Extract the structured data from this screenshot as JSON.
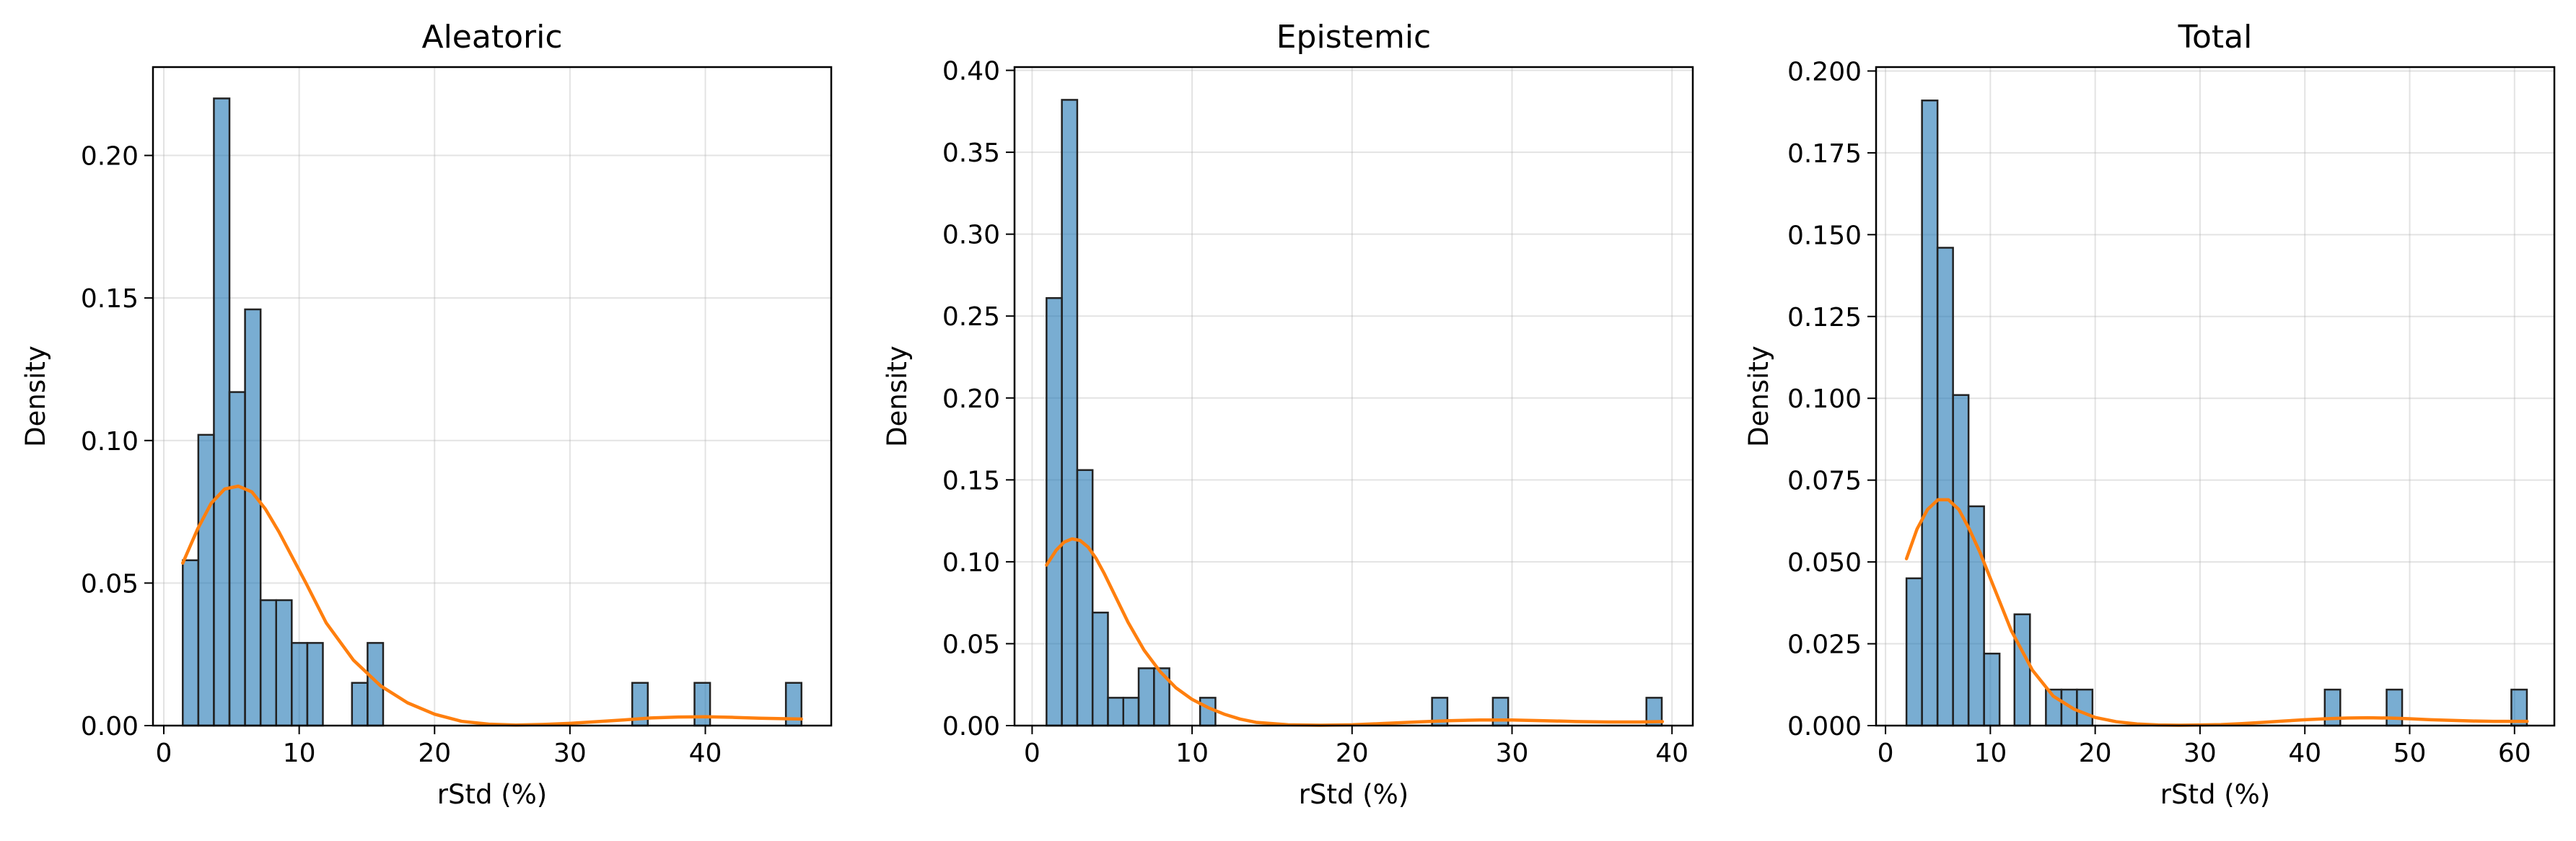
{
  "chart_data": [
    {
      "type": "bar",
      "subtype": "histogram-with-kde",
      "title": "Aleatoric",
      "xlabel": "rStd (%)",
      "ylabel": "Density",
      "xlim": [
        -0.8,
        49.3
      ],
      "ylim": [
        0,
        0.231
      ],
      "xticks": [
        0,
        10,
        20,
        30,
        40
      ],
      "yticks": [
        0.0,
        0.05,
        0.1,
        0.15,
        0.2
      ],
      "ytick_labels": [
        "0.00",
        "0.05",
        "0.10",
        "0.15",
        "0.20"
      ],
      "grid": true,
      "bin_width": 1.15,
      "bins": [
        {
          "x0": 1.4,
          "x1": 2.55,
          "density": 0.058
        },
        {
          "x0": 2.55,
          "x1": 3.7,
          "density": 0.102
        },
        {
          "x0": 3.7,
          "x1": 4.85,
          "density": 0.22
        },
        {
          "x0": 4.85,
          "x1": 6.0,
          "density": 0.117
        },
        {
          "x0": 6.0,
          "x1": 7.15,
          "density": 0.146
        },
        {
          "x0": 7.15,
          "x1": 8.3,
          "density": 0.044
        },
        {
          "x0": 8.3,
          "x1": 9.45,
          "density": 0.044
        },
        {
          "x0": 9.45,
          "x1": 10.6,
          "density": 0.029
        },
        {
          "x0": 10.6,
          "x1": 11.75,
          "density": 0.029
        },
        {
          "x0": 13.9,
          "x1": 15.05,
          "density": 0.015
        },
        {
          "x0": 15.05,
          "x1": 16.2,
          "density": 0.029
        },
        {
          "x0": 34.6,
          "x1": 35.75,
          "density": 0.015
        },
        {
          "x0": 39.2,
          "x1": 40.35,
          "density": 0.015
        },
        {
          "x0": 45.95,
          "x1": 47.1,
          "density": 0.015
        }
      ],
      "kde": {
        "x": [
          1.4,
          2.5,
          3.5,
          4.5,
          5.5,
          6.5,
          7.5,
          8.5,
          9.5,
          10.5,
          12,
          14,
          16,
          18,
          20,
          22,
          24,
          26,
          28,
          30,
          32,
          34,
          36,
          38,
          40,
          42,
          44,
          46,
          47.1
        ],
        "y": [
          0.057,
          0.069,
          0.078,
          0.083,
          0.084,
          0.082,
          0.076,
          0.068,
          0.059,
          0.05,
          0.036,
          0.023,
          0.014,
          0.008,
          0.004,
          0.0015,
          0.0005,
          0.0002,
          0.0004,
          0.0008,
          0.0014,
          0.002,
          0.0027,
          0.003,
          0.0031,
          0.0029,
          0.0026,
          0.0024,
          0.0023
        ]
      },
      "colors": {
        "bar": "#1f77b4",
        "kde": "#ff7f0e"
      }
    },
    {
      "type": "bar",
      "subtype": "histogram-with-kde",
      "title": "Epistemic",
      "xlabel": "rStd (%)",
      "ylabel": "Density",
      "xlim": [
        -1.1,
        41.3
      ],
      "ylim": [
        0,
        0.402
      ],
      "xticks": [
        0,
        10,
        20,
        30,
        40
      ],
      "yticks": [
        0.0,
        0.05,
        0.1,
        0.15,
        0.2,
        0.25,
        0.3,
        0.35,
        0.4
      ],
      "ytick_labels": [
        "0.00",
        "0.05",
        "0.10",
        "0.15",
        "0.20",
        "0.25",
        "0.30",
        "0.35",
        "0.40"
      ],
      "grid": true,
      "bin_width": 0.96,
      "bins": [
        {
          "x0": 0.9,
          "x1": 1.86,
          "density": 0.261
        },
        {
          "x0": 1.86,
          "x1": 2.82,
          "density": 0.382
        },
        {
          "x0": 2.82,
          "x1": 3.78,
          "density": 0.156
        },
        {
          "x0": 3.78,
          "x1": 4.74,
          "density": 0.069
        },
        {
          "x0": 4.74,
          "x1": 5.7,
          "density": 0.017
        },
        {
          "x0": 5.7,
          "x1": 6.66,
          "density": 0.017
        },
        {
          "x0": 6.66,
          "x1": 7.62,
          "density": 0.035
        },
        {
          "x0": 7.62,
          "x1": 8.58,
          "density": 0.035
        },
        {
          "x0": 10.5,
          "x1": 11.46,
          "density": 0.017
        },
        {
          "x0": 25.0,
          "x1": 25.96,
          "density": 0.017
        },
        {
          "x0": 28.8,
          "x1": 29.76,
          "density": 0.017
        },
        {
          "x0": 38.4,
          "x1": 39.36,
          "density": 0.017
        }
      ],
      "kde": {
        "x": [
          0.9,
          1.5,
          2.0,
          2.5,
          3.0,
          3.5,
          4.0,
          4.5,
          5,
          6,
          7,
          8,
          9,
          10,
          11,
          12,
          13,
          14,
          16,
          18,
          20,
          22,
          24,
          26,
          28,
          30,
          32,
          34,
          36,
          38,
          39.4
        ],
        "y": [
          0.098,
          0.107,
          0.112,
          0.114,
          0.113,
          0.109,
          0.102,
          0.093,
          0.083,
          0.063,
          0.046,
          0.033,
          0.023,
          0.016,
          0.011,
          0.007,
          0.004,
          0.002,
          0.0005,
          0.0002,
          0.0005,
          0.0013,
          0.0022,
          0.003,
          0.0034,
          0.0034,
          0.003,
          0.0025,
          0.0022,
          0.0022,
          0.0024
        ]
      },
      "colors": {
        "bar": "#1f77b4",
        "kde": "#ff7f0e"
      }
    },
    {
      "type": "bar",
      "subtype": "histogram-with-kde",
      "title": "Total",
      "xlabel": "rStd (%)",
      "ylabel": "Density",
      "xlim": [
        -0.9,
        63.8
      ],
      "ylim": [
        0,
        0.2012
      ],
      "xticks": [
        0,
        10,
        20,
        30,
        40,
        50,
        60
      ],
      "yticks": [
        0.0,
        0.025,
        0.05,
        0.075,
        0.1,
        0.125,
        0.15,
        0.175,
        0.2
      ],
      "ytick_labels": [
        "0.000",
        "0.025",
        "0.050",
        "0.075",
        "0.100",
        "0.125",
        "0.150",
        "0.175",
        "0.200"
      ],
      "grid": true,
      "bin_width": 1.48,
      "bins": [
        {
          "x0": 2.0,
          "x1": 3.48,
          "density": 0.045
        },
        {
          "x0": 3.48,
          "x1": 4.96,
          "density": 0.191
        },
        {
          "x0": 4.96,
          "x1": 6.44,
          "density": 0.146
        },
        {
          "x0": 6.44,
          "x1": 7.92,
          "density": 0.101
        },
        {
          "x0": 7.92,
          "x1": 9.4,
          "density": 0.067
        },
        {
          "x0": 9.4,
          "x1": 10.88,
          "density": 0.022
        },
        {
          "x0": 12.3,
          "x1": 13.78,
          "density": 0.034
        },
        {
          "x0": 15.3,
          "x1": 16.78,
          "density": 0.011
        },
        {
          "x0": 16.78,
          "x1": 18.26,
          "density": 0.011
        },
        {
          "x0": 18.26,
          "x1": 19.74,
          "density": 0.011
        },
        {
          "x0": 41.9,
          "x1": 43.38,
          "density": 0.011
        },
        {
          "x0": 47.8,
          "x1": 49.28,
          "density": 0.011
        },
        {
          "x0": 59.7,
          "x1": 61.18,
          "density": 0.011
        }
      ],
      "kde": {
        "x": [
          2.0,
          3,
          4,
          5,
          6,
          7,
          8,
          9,
          10,
          11,
          12,
          14,
          16,
          18,
          20,
          22,
          24,
          26,
          28,
          30,
          32,
          34,
          36,
          38,
          40,
          42,
          44,
          46,
          48,
          50,
          52,
          54,
          56,
          58,
          60,
          61.2
        ],
        "y": [
          0.051,
          0.06,
          0.066,
          0.069,
          0.069,
          0.066,
          0.06,
          0.053,
          0.045,
          0.037,
          0.029,
          0.017,
          0.009,
          0.005,
          0.0025,
          0.0012,
          0.0005,
          0.0002,
          0.0001,
          0.0002,
          0.0003,
          0.0006,
          0.001,
          0.0014,
          0.0018,
          0.0021,
          0.0023,
          0.0024,
          0.0023,
          0.0021,
          0.0018,
          0.0016,
          0.0014,
          0.0013,
          0.0013,
          0.0013
        ]
      },
      "colors": {
        "bar": "#1f77b4",
        "kde": "#ff7f0e"
      }
    }
  ]
}
